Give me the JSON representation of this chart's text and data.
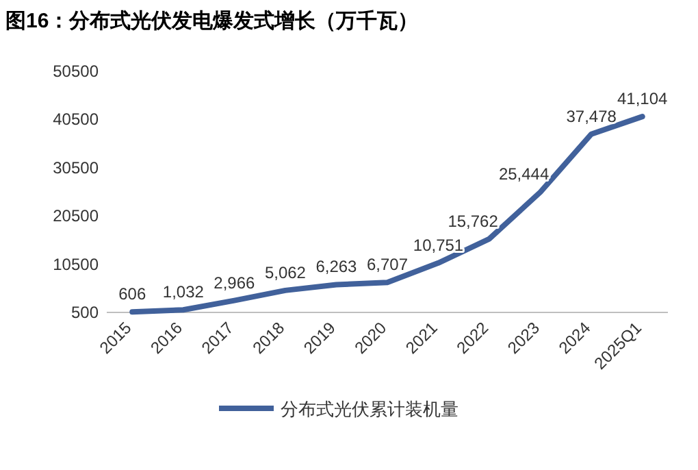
{
  "chart_data": {
    "type": "line",
    "title": "图16：分布式光伏发电爆发式增长（万千瓦）",
    "categories": [
      "2015",
      "2016",
      "2017",
      "2018",
      "2019",
      "2020",
      "2021",
      "2022",
      "2023",
      "2024",
      "2025Q1"
    ],
    "series": [
      {
        "name": "分布式光伏累计装机量",
        "color": "#41619b",
        "values": [
          606,
          1032,
          2966,
          5062,
          6263,
          6707,
          10751,
          15762,
          25444,
          37478,
          41104
        ],
        "value_labels": [
          "606",
          "1,032",
          "2,966",
          "5,062",
          "6,263",
          "6,707",
          "10,751",
          "15,762",
          "25,444",
          "37,478",
          "41,104"
        ]
      }
    ],
    "ylim": [
      500,
      50500
    ],
    "yticks": [
      500,
      10500,
      20500,
      30500,
      40500,
      50500
    ],
    "legend": "bottom"
  }
}
